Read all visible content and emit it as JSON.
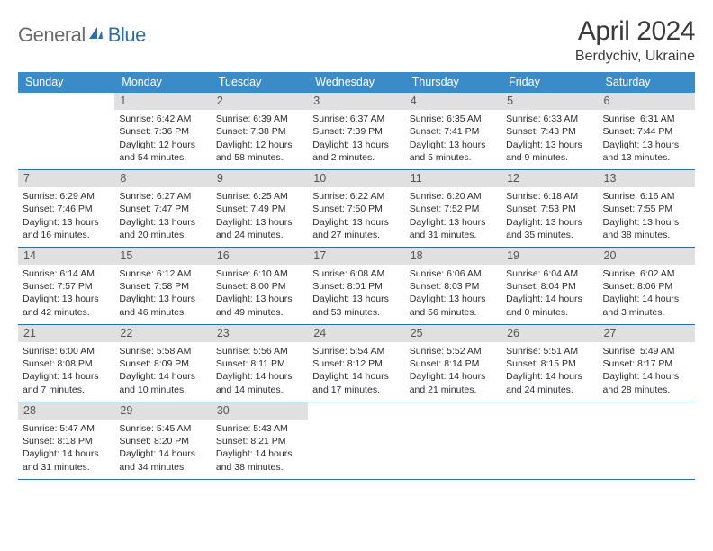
{
  "brand": {
    "word1": "General",
    "word2": "Blue",
    "color_gray": "#6b6b6b",
    "color_blue": "#2f6fa8"
  },
  "title": "April 2024",
  "location": "Berdychiv, Ukraine",
  "header_bg": "#3b8bc9",
  "daynum_bg": "#e0e0e0",
  "rule_color": "#2f6fa8",
  "day_headers": [
    "Sunday",
    "Monday",
    "Tuesday",
    "Wednesday",
    "Thursday",
    "Friday",
    "Saturday"
  ],
  "weeks": [
    [
      null,
      {
        "n": "1",
        "l1": "Sunrise: 6:42 AM",
        "l2": "Sunset: 7:36 PM",
        "l3": "Daylight: 12 hours",
        "l4": "and 54 minutes."
      },
      {
        "n": "2",
        "l1": "Sunrise: 6:39 AM",
        "l2": "Sunset: 7:38 PM",
        "l3": "Daylight: 12 hours",
        "l4": "and 58 minutes."
      },
      {
        "n": "3",
        "l1": "Sunrise: 6:37 AM",
        "l2": "Sunset: 7:39 PM",
        "l3": "Daylight: 13 hours",
        "l4": "and 2 minutes."
      },
      {
        "n": "4",
        "l1": "Sunrise: 6:35 AM",
        "l2": "Sunset: 7:41 PM",
        "l3": "Daylight: 13 hours",
        "l4": "and 5 minutes."
      },
      {
        "n": "5",
        "l1": "Sunrise: 6:33 AM",
        "l2": "Sunset: 7:43 PM",
        "l3": "Daylight: 13 hours",
        "l4": "and 9 minutes."
      },
      {
        "n": "6",
        "l1": "Sunrise: 6:31 AM",
        "l2": "Sunset: 7:44 PM",
        "l3": "Daylight: 13 hours",
        "l4": "and 13 minutes."
      }
    ],
    [
      {
        "n": "7",
        "l1": "Sunrise: 6:29 AM",
        "l2": "Sunset: 7:46 PM",
        "l3": "Daylight: 13 hours",
        "l4": "and 16 minutes."
      },
      {
        "n": "8",
        "l1": "Sunrise: 6:27 AM",
        "l2": "Sunset: 7:47 PM",
        "l3": "Daylight: 13 hours",
        "l4": "and 20 minutes."
      },
      {
        "n": "9",
        "l1": "Sunrise: 6:25 AM",
        "l2": "Sunset: 7:49 PM",
        "l3": "Daylight: 13 hours",
        "l4": "and 24 minutes."
      },
      {
        "n": "10",
        "l1": "Sunrise: 6:22 AM",
        "l2": "Sunset: 7:50 PM",
        "l3": "Daylight: 13 hours",
        "l4": "and 27 minutes."
      },
      {
        "n": "11",
        "l1": "Sunrise: 6:20 AM",
        "l2": "Sunset: 7:52 PM",
        "l3": "Daylight: 13 hours",
        "l4": "and 31 minutes."
      },
      {
        "n": "12",
        "l1": "Sunrise: 6:18 AM",
        "l2": "Sunset: 7:53 PM",
        "l3": "Daylight: 13 hours",
        "l4": "and 35 minutes."
      },
      {
        "n": "13",
        "l1": "Sunrise: 6:16 AM",
        "l2": "Sunset: 7:55 PM",
        "l3": "Daylight: 13 hours",
        "l4": "and 38 minutes."
      }
    ],
    [
      {
        "n": "14",
        "l1": "Sunrise: 6:14 AM",
        "l2": "Sunset: 7:57 PM",
        "l3": "Daylight: 13 hours",
        "l4": "and 42 minutes."
      },
      {
        "n": "15",
        "l1": "Sunrise: 6:12 AM",
        "l2": "Sunset: 7:58 PM",
        "l3": "Daylight: 13 hours",
        "l4": "and 46 minutes."
      },
      {
        "n": "16",
        "l1": "Sunrise: 6:10 AM",
        "l2": "Sunset: 8:00 PM",
        "l3": "Daylight: 13 hours",
        "l4": "and 49 minutes."
      },
      {
        "n": "17",
        "l1": "Sunrise: 6:08 AM",
        "l2": "Sunset: 8:01 PM",
        "l3": "Daylight: 13 hours",
        "l4": "and 53 minutes."
      },
      {
        "n": "18",
        "l1": "Sunrise: 6:06 AM",
        "l2": "Sunset: 8:03 PM",
        "l3": "Daylight: 13 hours",
        "l4": "and 56 minutes."
      },
      {
        "n": "19",
        "l1": "Sunrise: 6:04 AM",
        "l2": "Sunset: 8:04 PM",
        "l3": "Daylight: 14 hours",
        "l4": "and 0 minutes."
      },
      {
        "n": "20",
        "l1": "Sunrise: 6:02 AM",
        "l2": "Sunset: 8:06 PM",
        "l3": "Daylight: 14 hours",
        "l4": "and 3 minutes."
      }
    ],
    [
      {
        "n": "21",
        "l1": "Sunrise: 6:00 AM",
        "l2": "Sunset: 8:08 PM",
        "l3": "Daylight: 14 hours",
        "l4": "and 7 minutes."
      },
      {
        "n": "22",
        "l1": "Sunrise: 5:58 AM",
        "l2": "Sunset: 8:09 PM",
        "l3": "Daylight: 14 hours",
        "l4": "and 10 minutes."
      },
      {
        "n": "23",
        "l1": "Sunrise: 5:56 AM",
        "l2": "Sunset: 8:11 PM",
        "l3": "Daylight: 14 hours",
        "l4": "and 14 minutes."
      },
      {
        "n": "24",
        "l1": "Sunrise: 5:54 AM",
        "l2": "Sunset: 8:12 PM",
        "l3": "Daylight: 14 hours",
        "l4": "and 17 minutes."
      },
      {
        "n": "25",
        "l1": "Sunrise: 5:52 AM",
        "l2": "Sunset: 8:14 PM",
        "l3": "Daylight: 14 hours",
        "l4": "and 21 minutes."
      },
      {
        "n": "26",
        "l1": "Sunrise: 5:51 AM",
        "l2": "Sunset: 8:15 PM",
        "l3": "Daylight: 14 hours",
        "l4": "and 24 minutes."
      },
      {
        "n": "27",
        "l1": "Sunrise: 5:49 AM",
        "l2": "Sunset: 8:17 PM",
        "l3": "Daylight: 14 hours",
        "l4": "and 28 minutes."
      }
    ],
    [
      {
        "n": "28",
        "l1": "Sunrise: 5:47 AM",
        "l2": "Sunset: 8:18 PM",
        "l3": "Daylight: 14 hours",
        "l4": "and 31 minutes."
      },
      {
        "n": "29",
        "l1": "Sunrise: 5:45 AM",
        "l2": "Sunset: 8:20 PM",
        "l3": "Daylight: 14 hours",
        "l4": "and 34 minutes."
      },
      {
        "n": "30",
        "l1": "Sunrise: 5:43 AM",
        "l2": "Sunset: 8:21 PM",
        "l3": "Daylight: 14 hours",
        "l4": "and 38 minutes."
      },
      null,
      null,
      null,
      null
    ]
  ]
}
